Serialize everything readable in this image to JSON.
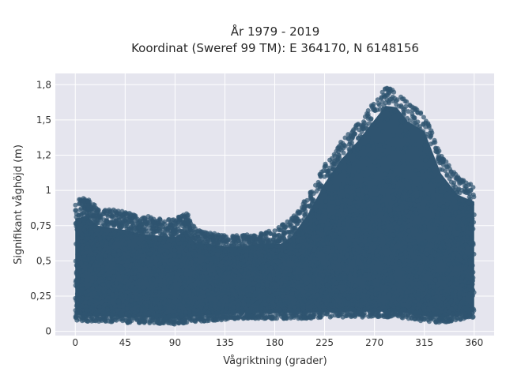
{
  "chart_data": {
    "type": "scatter",
    "title_line1": "År 1979 - 2019",
    "title_line2": "Koordinat (Sweref 99 TM): E 364170, N 6148156",
    "xlabel": "Vågriktning (grader)",
    "ylabel": "Signifikant våghöjd (m)",
    "xlim": [
      -18,
      378
    ],
    "ylim": [
      -0.03,
      1.83
    ],
    "x_ticks": [
      0,
      45,
      90,
      135,
      180,
      225,
      270,
      315,
      360
    ],
    "x_tick_labels": [
      "0",
      "45",
      "90",
      "135",
      "180",
      "225",
      "270",
      "315",
      "360"
    ],
    "y_ticks": [
      0,
      0.25,
      0.5,
      0.75,
      1.0,
      1.25,
      1.5,
      1.75
    ],
    "y_tick_labels": [
      "0",
      "0,25",
      "0,5",
      "0,75",
      "1",
      "1,2",
      "1,5",
      "1,8"
    ],
    "grid": true,
    "point_color": "#2f5470",
    "plot_background": "#e5e5ee",
    "envelope": {
      "direction_deg": [
        0,
        10,
        20,
        45,
        60,
        90,
        100,
        110,
        135,
        150,
        180,
        195,
        210,
        225,
        240,
        255,
        270,
        280,
        290,
        300,
        315,
        330,
        345,
        360
      ],
      "min_height_m": [
        0.08,
        0.07,
        0.07,
        0.06,
        0.06,
        0.05,
        0.06,
        0.07,
        0.08,
        0.09,
        0.09,
        0.09,
        0.09,
        0.1,
        0.1,
        0.1,
        0.1,
        0.1,
        0.1,
        0.09,
        0.07,
        0.06,
        0.08,
        0.1
      ],
      "max_height_m": [
        0.93,
        0.95,
        0.88,
        0.85,
        0.82,
        0.8,
        0.85,
        0.72,
        0.68,
        0.68,
        0.72,
        0.8,
        0.96,
        1.18,
        1.35,
        1.48,
        1.63,
        1.73,
        1.72,
        1.62,
        1.55,
        1.25,
        1.1,
        1.05
      ]
    }
  }
}
